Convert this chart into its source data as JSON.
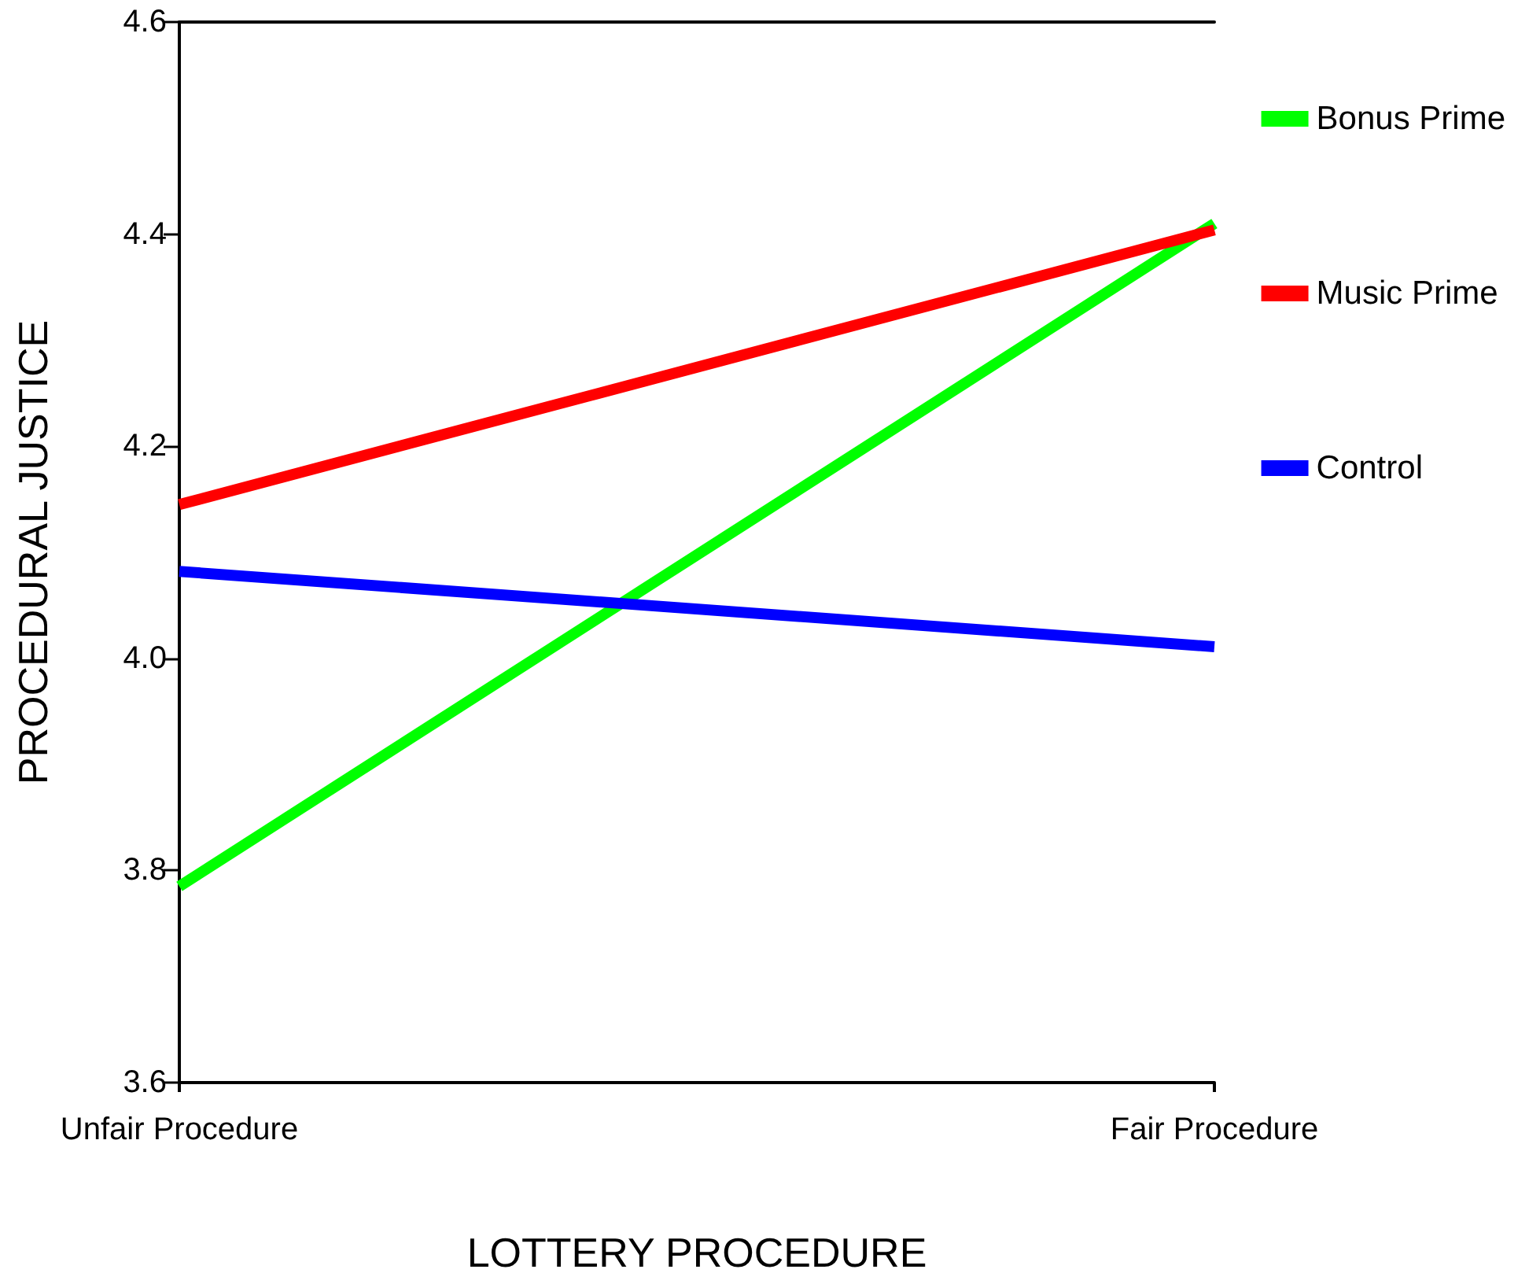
{
  "chart_data": {
    "type": "line",
    "xlabel": "LOTTERY PROCEDURE",
    "ylabel": "PROCEDURAL JUSTICE",
    "categories": [
      "Unfair Procedure",
      "Fair Procedure"
    ],
    "series": [
      {
        "name": "Bonus Prime",
        "color": "#00ff00",
        "values": [
          3.785,
          4.41
        ]
      },
      {
        "name": "Music Prime",
        "color": "#ff0000",
        "values": [
          4.145,
          4.404
        ]
      },
      {
        "name": "Control",
        "color": "#0000ff",
        "values": [
          4.082,
          4.011
        ]
      }
    ],
    "ylim": [
      3.6,
      4.6
    ],
    "yticks": [
      {
        "value": 3.6,
        "label": "3.6"
      },
      {
        "value": 3.8,
        "label": "3.8"
      },
      {
        "value": 4,
        "label": "4.0"
      },
      {
        "value": 4.2,
        "label": "4.2"
      },
      {
        "value": 4.4,
        "label": "4.4"
      },
      {
        "value": 4.6,
        "label": "4.6"
      }
    ],
    "grid": false,
    "legend": "right",
    "marker": "none",
    "line_style": "solid"
  }
}
